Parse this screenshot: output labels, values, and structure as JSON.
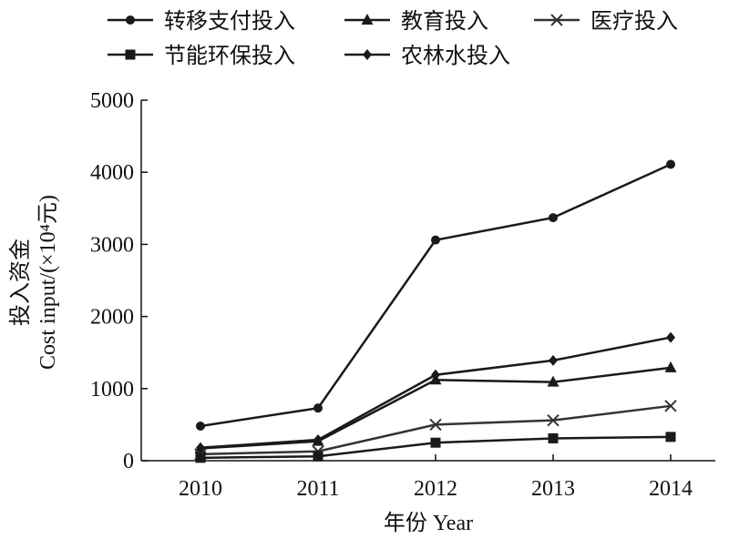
{
  "chart_data": {
    "type": "line",
    "title": "",
    "x": [
      "2010",
      "2011",
      "2012",
      "2013",
      "2014"
    ],
    "xlabel": "年份 Year",
    "ylabel_lines": [
      "投入资金",
      "Cost input/(×10⁴元)"
    ],
    "ylim": [
      0,
      5000
    ],
    "yticks": [
      "0",
      "1000",
      "2000",
      "3000",
      "4000",
      "5000"
    ],
    "grid": false,
    "legend_position": "top",
    "series": [
      {
        "name": "转移支付投入",
        "marker": "circle",
        "color": "#1a1a1a",
        "values": [
          480,
          730,
          3060,
          3370,
          4110
        ]
      },
      {
        "name": "教育投入",
        "marker": "triangle",
        "color": "#1a1a1a",
        "values": [
          170,
          270,
          1120,
          1090,
          1290
        ]
      },
      {
        "name": "医疗投入",
        "marker": "x",
        "color": "#333333",
        "values": [
          90,
          130,
          500,
          560,
          760
        ]
      },
      {
        "name": "节能环保投入",
        "marker": "square",
        "color": "#1a1a1a",
        "values": [
          40,
          60,
          250,
          310,
          330
        ]
      },
      {
        "name": "农林水投入",
        "marker": "diamond",
        "color": "#1a1a1a",
        "values": [
          180,
          290,
          1190,
          1390,
          1710
        ]
      }
    ]
  }
}
